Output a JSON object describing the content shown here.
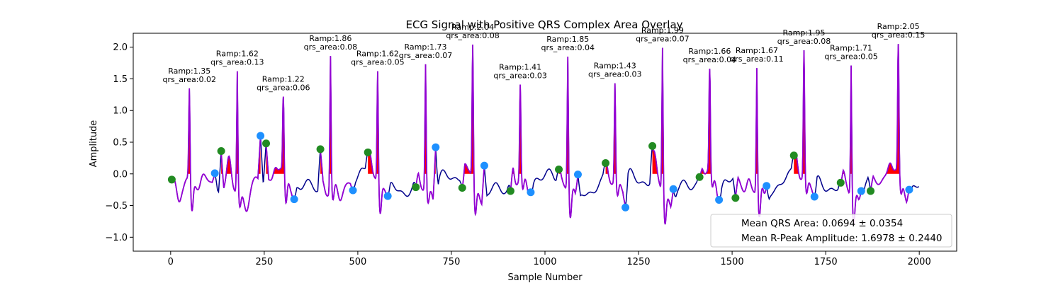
{
  "chart_data": {
    "type": "line",
    "title": "ECG Signal with Positive QRS Complex Area Overlay",
    "xlabel": "Sample Number",
    "ylabel": "Amplitude",
    "xlim": [
      -100,
      2100
    ],
    "ylim": [
      -1.22,
      2.22
    ],
    "x_ticks": [
      0,
      250,
      500,
      750,
      1000,
      1250,
      1500,
      1750,
      2000
    ],
    "y_ticks": [
      -1.0,
      -0.5,
      0.0,
      0.5,
      1.0,
      1.5,
      2.0
    ],
    "y_tick_labels": [
      "−1.0",
      "−0.5",
      "0.0",
      "0.5",
      "1.0",
      "1.5",
      "2.0"
    ],
    "grid": false,
    "colors": {
      "signal": "#00008b",
      "qrs_segment": "#9400d3",
      "fill": "#ff0000",
      "q_point": "#228b22",
      "s_point": "#1e90ff"
    },
    "beats": [
      {
        "r": 50,
        "ramp": 1.35,
        "q": [
          3,
          -0.09
        ],
        "s": [
          118,
          0.01
        ],
        "qrs_area": "0.02",
        "label": "Ramp:1.35\nqrs_area:0.02"
      },
      {
        "r": 178,
        "ramp": 1.62,
        "q": [
          135,
          0.36
        ],
        "s": [
          240,
          0.6
        ],
        "qrs_area": "0.13",
        "label": "Ramp:1.62\nqrs_area:0.13"
      },
      {
        "r": 301,
        "ramp": 1.22,
        "q": [
          255,
          0.48
        ],
        "s": [
          330,
          -0.4
        ],
        "qrs_area": "0.06",
        "label": "Ramp:1.22\nqrs_area:0.06"
      },
      {
        "r": 427,
        "ramp": 1.86,
        "q": [
          400,
          0.39
        ],
        "s": [
          487,
          -0.26
        ],
        "qrs_area": "0.08",
        "label": "Ramp:1.86\nqrs_area:0.08"
      },
      {
        "r": 553,
        "ramp": 1.62,
        "q": [
          527,
          0.34
        ],
        "s": [
          580,
          -0.35
        ],
        "qrs_area": "0.05",
        "label": "Ramp:1.62\nqrs_area:0.05"
      },
      {
        "r": 681,
        "ramp": 1.73,
        "q": [
          655,
          -0.21
        ],
        "s": [
          708,
          0.42
        ],
        "qrs_area": "0.07",
        "label": "Ramp:1.73\nqrs_area:0.07"
      },
      {
        "r": 807,
        "ramp": 2.04,
        "q": [
          779,
          -0.22
        ],
        "s": [
          838,
          0.13
        ],
        "qrs_area": "0.08",
        "label": "Ramp:2.04\nqrs_area:0.08"
      },
      {
        "r": 934,
        "ramp": 1.41,
        "q": [
          908,
          -0.27
        ],
        "s": [
          962,
          -0.29
        ],
        "qrs_area": "0.03",
        "label": "Ramp:1.41\nqrs_area:0.03"
      },
      {
        "r": 1061,
        "ramp": 1.85,
        "q": [
          1037,
          0.07
        ],
        "s": [
          1088,
          -0.01
        ],
        "qrs_area": "0.04",
        "label": "Ramp:1.85\nqrs_area:0.04"
      },
      {
        "r": 1187,
        "ramp": 1.43,
        "q": [
          1162,
          0.17
        ],
        "s": [
          1215,
          -0.53
        ],
        "qrs_area": "0.03",
        "label": "Ramp:1.43\nqrs_area:0.03"
      },
      {
        "r": 1314,
        "ramp": 1.99,
        "q": [
          1287,
          0.44
        ],
        "s": [
          1343,
          -0.24
        ],
        "qrs_area": "0.07",
        "label": "Ramp:1.99\nqrs_area:0.07"
      },
      {
        "r": 1440,
        "ramp": 1.66,
        "q": [
          1413,
          -0.05
        ],
        "s": [
          1465,
          -0.41
        ],
        "qrs_area": "0.04",
        "label": "Ramp:1.66\nqrs_area:0.04"
      },
      {
        "r": 1566,
        "ramp": 1.67,
        "q": [
          1509,
          -0.38
        ],
        "s": [
          1592,
          -0.19
        ],
        "qrs_area": "0.11",
        "label": "Ramp:1.67\nqrs_area:0.11"
      },
      {
        "r": 1692,
        "ramp": 1.95,
        "q": [
          1665,
          0.29
        ],
        "s": [
          1720,
          -0.36
        ],
        "qrs_area": "0.08",
        "label": "Ramp:1.95\nqrs_area:0.08"
      },
      {
        "r": 1818,
        "ramp": 1.71,
        "q": [
          1790,
          -0.14
        ],
        "s": [
          1845,
          -0.27
        ],
        "qrs_area": "0.05",
        "label": "Ramp:1.71\nqrs_area:0.05"
      },
      {
        "r": 1944,
        "ramp": 2.05,
        "q": [
          1870,
          -0.27
        ],
        "s": [
          1973,
          -0.25
        ],
        "qrs_area": "0.15",
        "label": "Ramp:2.05\nqrs_area:0.15"
      }
    ],
    "legend": {
      "placement": "lower-right",
      "entries": [
        "Mean QRS Area: 0.0694 ± 0.0354",
        "Mean R-Peak Amplitude: 1.6978 ± 0.2440"
      ]
    }
  }
}
